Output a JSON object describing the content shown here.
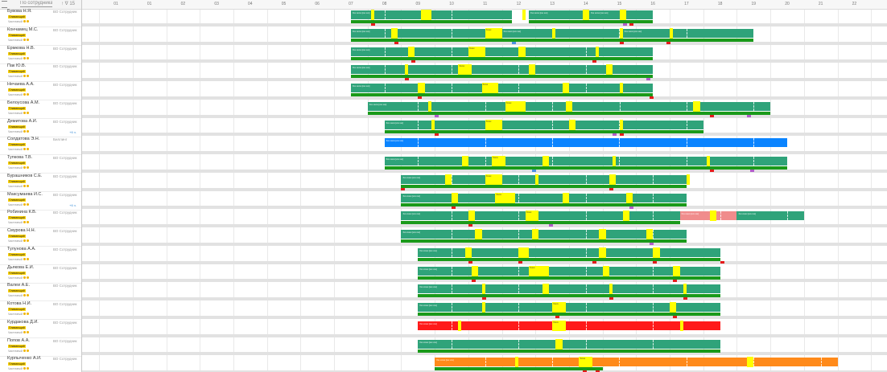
{
  "sidebar": {
    "header": {
      "filter_label": "По сотрудникам",
      "total_label": "↑ ∇ 15"
    },
    "employees": [
      {
        "name": "Бувова Н.Я.",
        "role": "ВО Сотрудник",
        "badge": "Плавающий",
        "schedule": "Частичный"
      },
      {
        "name": "Кончамец М.С.",
        "role": "ВО Сотрудник",
        "badge": "Плавающий",
        "schedule": "Частичный"
      },
      {
        "name": "Ермкова Н.В.",
        "role": "ВО Сотрудник",
        "badge": "Плавающий",
        "schedule": "Частичный"
      },
      {
        "name": "Пак Ю.В.",
        "role": "ВО Сотрудник",
        "badge": "Плавающий",
        "schedule": "Частичный"
      },
      {
        "name": "Нечаева А.А.",
        "role": "ВО Сотрудник",
        "badge": "Плавающий",
        "schedule": "Частичный"
      },
      {
        "name": "Белоусова А.М.",
        "role": "ВО Сотрудник",
        "badge": "Плавающий",
        "schedule": "Частичный"
      },
      {
        "name": "Демитова А.И.",
        "role": "ВО Сотрудник",
        "badge": "Плавающий",
        "schedule": "Частичный",
        "extra": "+6 ч."
      },
      {
        "name": "Солдатова Э.Н.",
        "role": "Биллинг",
        "badge": "Плавающий",
        "schedule": "Частичный"
      },
      {
        "name": "Тупкова Т.В.",
        "role": "ВО Сотрудник",
        "badge": "Плавающий",
        "schedule": "Частичный"
      },
      {
        "name": "Бурашников С.Е.",
        "role": "ВО Сотрудник",
        "badge": "Плавающий",
        "schedule": "Частичный"
      },
      {
        "name": "Максумаева И.С.",
        "role": "ВО Сотрудник",
        "badge": "Плавающий",
        "schedule": "Частичный",
        "extra": "+6 ч."
      },
      {
        "name": "Робинина К.В.",
        "role": "ВО Сотрудник",
        "badge": "Плавающий",
        "schedule": "Частичный"
      },
      {
        "name": "Смурова Н.Н.",
        "role": "ВО Сотрудник",
        "badge": "Плавающий",
        "schedule": "Частичный"
      },
      {
        "name": "Тулунова А.А.",
        "role": "ВО Сотрудник",
        "badge": "Плавающий",
        "schedule": "Частичный"
      },
      {
        "name": "Дьякова Е.И.",
        "role": "ВО Сотрудник",
        "badge": "Плавающий",
        "schedule": "Частичный"
      },
      {
        "name": "Валеи А.Е.",
        "role": "ВО Сотрудник",
        "badge": "Плавающий",
        "schedule": "Частичный"
      },
      {
        "name": "Котова Н.И.",
        "role": "ВО Сотрудник",
        "badge": "Плавающий",
        "schedule": "Частичный"
      },
      {
        "name": "Курдакова Д.И.",
        "role": "ВО Сотрудник",
        "badge": "Плавающий",
        "schedule": "Частичный"
      },
      {
        "name": "Попов А.А.",
        "role": "ВО Сотрудник",
        "badge": "Плавающий",
        "schedule": "Частичный"
      },
      {
        "name": "Курпыченко А.И.",
        "role": "ВО Сотрудник",
        "badge": "Плавающий",
        "schedule": "Частичный"
      }
    ]
  },
  "timeline": {
    "hours": [
      "01",
      "01",
      "02",
      "03",
      "04",
      "05",
      "06",
      "07",
      "08",
      "09",
      "10",
      "11",
      "12",
      "13",
      "14",
      "15",
      "16",
      "17",
      "18",
      "19",
      "20",
      "21",
      "22"
    ],
    "shift_text": "Ххх ххххх [ххх ххх]",
    "break_text": "Ххххх"
  },
  "colors": {
    "work": "#2fa37a",
    "base": "#1a9a1a",
    "break": "#ffff00",
    "billing": "#0a84ff",
    "absence": "#ff1a1a",
    "overtime": "#ff8a1a",
    "extra": "#f08c8c",
    "marker_red": "#e51b1b",
    "marker_purple": "#b15cc9",
    "marker_blue": "#4a90e2"
  },
  "rows": [
    {
      "shifts": [
        [
          8.0,
          12.8,
          "work"
        ],
        [
          13.3,
          14.9,
          "work"
        ],
        [
          15.1,
          17.0,
          "work"
        ]
      ],
      "breaks": [
        [
          8.6,
          8.7
        ],
        [
          10.1,
          10.4
        ],
        [
          13.1,
          13.2
        ],
        [
          14.9,
          15.1
        ],
        [
          16.0,
          16.2
        ]
      ],
      "base": [
        [
          8.0,
          12.8,
          "base"
        ],
        [
          13.3,
          17.0,
          "base"
        ]
      ],
      "markers": [
        [
          8.6,
          "marker_red"
        ],
        [
          16.1,
          "marker_purple"
        ],
        [
          16.3,
          "marker_red"
        ]
      ]
    },
    {
      "shifts": [
        [
          8.0,
          12.4,
          "work"
        ],
        [
          12.5,
          16.1,
          "work"
        ],
        [
          16.1,
          20.0,
          "work"
        ]
      ],
      "breaks": [
        [
          9.2,
          9.4
        ],
        [
          12.0,
          12.5
        ],
        [
          14.0,
          14.1
        ],
        [
          16.0,
          16.1
        ],
        [
          17.5,
          17.6
        ]
      ],
      "base": [
        [
          8.0,
          20.0,
          "base"
        ]
      ],
      "markers": [
        [
          9.3,
          "marker_red"
        ],
        [
          12.8,
          "marker_blue"
        ],
        [
          16.0,
          "marker_red"
        ],
        [
          17.4,
          "marker_red"
        ]
      ]
    },
    {
      "shifts": [
        [
          8.0,
          17.0,
          "work"
        ]
      ],
      "breaks": [
        [
          9.7,
          9.9
        ],
        [
          11.5,
          12.0
        ],
        [
          13.0,
          13.2
        ],
        [
          15.3,
          15.4
        ]
      ],
      "base": [
        [
          8.0,
          17.0,
          "base"
        ]
      ],
      "markers": [
        [
          9.8,
          "marker_red"
        ],
        [
          15.2,
          "marker_red"
        ]
      ]
    },
    {
      "shifts": [
        [
          8.0,
          17.0,
          "work"
        ]
      ],
      "breaks": [
        [
          9.6,
          9.7
        ],
        [
          11.2,
          11.6
        ],
        [
          13.3,
          13.5
        ],
        [
          15.6,
          15.8
        ]
      ],
      "base": [
        [
          8.0,
          17.0,
          "base"
        ]
      ],
      "markers": [
        [
          9.6,
          "marker_red"
        ],
        [
          16.8,
          "marker_purple"
        ]
      ]
    },
    {
      "shifts": [
        [
          8.0,
          17.0,
          "work"
        ]
      ],
      "breaks": [
        [
          10.0,
          10.2
        ],
        [
          11.9,
          12.4
        ],
        [
          14.3,
          14.5
        ],
        [
          16.0,
          16.1
        ]
      ],
      "base": [
        [
          8.0,
          17.0,
          "base"
        ]
      ],
      "markers": [
        [
          10.0,
          "marker_red"
        ],
        [
          16.9,
          "marker_red"
        ]
      ]
    },
    {
      "shifts": [
        [
          8.5,
          20.5,
          "work"
        ]
      ],
      "breaks": [
        [
          10.3,
          10.4
        ],
        [
          12.6,
          13.2
        ],
        [
          14.4,
          14.6
        ],
        [
          18.2,
          18.4
        ]
      ],
      "base": [
        [
          8.5,
          20.5,
          "base"
        ]
      ],
      "markers": [
        [
          10.5,
          "marker_purple"
        ],
        [
          18.7,
          "marker_red"
        ],
        [
          19.8,
          "marker_purple"
        ]
      ]
    },
    {
      "shifts": [
        [
          9.0,
          18.5,
          "work"
        ]
      ],
      "breaks": [
        [
          10.4,
          10.5
        ],
        [
          12.0,
          12.5
        ],
        [
          14.5,
          14.7
        ],
        [
          16.0,
          16.1
        ]
      ],
      "base": [
        [
          9.0,
          18.5,
          "base"
        ]
      ],
      "markers": [
        [
          10.5,
          "marker_red"
        ],
        [
          15.8,
          "marker_purple"
        ],
        [
          16.0,
          "marker_red"
        ]
      ]
    },
    {
      "shifts": [
        [
          9.0,
          21.0,
          "billing"
        ]
      ],
      "breaks": [],
      "base": [],
      "markers": []
    },
    {
      "shifts": [
        [
          9.0,
          21.0,
          "work"
        ]
      ],
      "breaks": [
        [
          11.3,
          11.5
        ],
        [
          12.2,
          12.6
        ],
        [
          13.7,
          13.9
        ],
        [
          15.8,
          15.9
        ],
        [
          18.6,
          18.7
        ]
      ],
      "base": [
        [
          9.0,
          21.0,
          "base"
        ]
      ],
      "markers": [
        [
          13.4,
          "marker_blue"
        ],
        [
          19.9,
          "marker_purple"
        ],
        [
          18.7,
          "marker_red"
        ]
      ]
    },
    {
      "shifts": [
        [
          9.5,
          18.0,
          "work"
        ]
      ],
      "breaks": [
        [
          10.8,
          11.0
        ],
        [
          12.0,
          12.5
        ],
        [
          13.5,
          13.6
        ],
        [
          15.7,
          15.9
        ],
        [
          18.0,
          18.1
        ]
      ],
      "base": [
        [
          9.5,
          18.0,
          "base"
        ]
      ],
      "markers": [
        [
          9.5,
          "marker_red"
        ],
        [
          15.7,
          "marker_red"
        ]
      ]
    },
    {
      "shifts": [
        [
          9.5,
          18.0,
          "work"
        ]
      ],
      "breaks": [
        [
          11.0,
          11.2
        ],
        [
          12.3,
          12.9
        ],
        [
          14.3,
          14.5
        ],
        [
          16.2,
          16.4
        ]
      ],
      "base": [
        [
          9.5,
          18.0,
          "base"
        ]
      ],
      "markers": [
        [
          11.0,
          "marker_red"
        ],
        [
          16.3,
          "marker_purple"
        ]
      ]
    },
    {
      "shifts": [
        [
          9.5,
          17.8,
          "work"
        ],
        [
          17.8,
          19.5,
          "extra"
        ],
        [
          19.5,
          21.5,
          "work"
        ]
      ],
      "breaks": [
        [
          11.5,
          11.7
        ],
        [
          13.2,
          13.6
        ],
        [
          16.1,
          16.3
        ],
        [
          18.7,
          18.9
        ]
      ],
      "base": [
        [
          9.5,
          17.8,
          "base"
        ]
      ],
      "markers": [
        [
          13.9,
          "marker_purple"
        ],
        [
          11.5,
          "marker_red"
        ]
      ]
    },
    {
      "shifts": [
        [
          9.5,
          18.0,
          "work"
        ]
      ],
      "breaks": [
        [
          11.7,
          11.9
        ],
        [
          13.4,
          13.6
        ],
        [
          15.4,
          15.6
        ],
        [
          16.8,
          17.0
        ]
      ],
      "base": [
        [
          9.5,
          18.0,
          "base"
        ]
      ],
      "markers": [
        [
          16.9,
          "marker_purple"
        ]
      ]
    },
    {
      "shifts": [
        [
          10.0,
          19.0,
          "work"
        ]
      ],
      "breaks": [
        [
          11.4,
          11.6
        ],
        [
          13.0,
          13.3
        ],
        [
          15.4,
          15.6
        ],
        [
          17.0,
          17.2
        ]
      ],
      "base": [
        [
          10.0,
          19.0,
          "base"
        ]
      ],
      "markers": [
        [
          11.5,
          "marker_red"
        ],
        [
          13.0,
          "marker_red"
        ],
        [
          15.2,
          "marker_red"
        ],
        [
          17.0,
          "marker_red"
        ],
        [
          19.0,
          "marker_red"
        ]
      ]
    },
    {
      "shifts": [
        [
          10.0,
          19.0,
          "work"
        ]
      ],
      "breaks": [
        [
          11.6,
          11.8
        ],
        [
          13.3,
          13.9
        ],
        [
          15.5,
          15.7
        ],
        [
          17.6,
          17.8
        ]
      ],
      "base": [
        [
          10.0,
          19.0,
          "base"
        ]
      ],
      "markers": [
        [
          11.6,
          "marker_red"
        ],
        [
          17.6,
          "marker_red"
        ]
      ]
    },
    {
      "shifts": [
        [
          10.0,
          19.0,
          "work"
        ]
      ],
      "breaks": [
        [
          11.9,
          12.0
        ],
        [
          13.7,
          13.9
        ],
        [
          15.7,
          15.8
        ],
        [
          17.9,
          18.0
        ]
      ],
      "base": [
        [
          10.0,
          19.0,
          "base"
        ]
      ],
      "markers": [
        [
          11.9,
          "marker_red"
        ],
        [
          15.7,
          "marker_red"
        ],
        [
          17.9,
          "marker_red"
        ]
      ]
    },
    {
      "shifts": [
        [
          10.0,
          19.0,
          "work"
        ]
      ],
      "breaks": [
        [
          11.9,
          12.0
        ],
        [
          14.0,
          14.4
        ],
        [
          17.5,
          17.7
        ]
      ],
      "base": [
        [
          10.0,
          19.0,
          "base"
        ]
      ],
      "markers": [
        [
          14.1,
          "marker_red"
        ],
        [
          17.6,
          "marker_red"
        ]
      ]
    },
    {
      "shifts": [
        [
          10.0,
          19.0,
          "absence"
        ]
      ],
      "breaks": [
        [
          11.2,
          11.3
        ],
        [
          14.0,
          14.4
        ],
        [
          17.8,
          17.9
        ]
      ],
      "base": [],
      "markers": []
    },
    {
      "shifts": [
        [
          10.0,
          19.0,
          "work"
        ]
      ],
      "breaks": [
        [
          14.1,
          14.3
        ]
      ],
      "base": [
        [
          10.0,
          19.0,
          "base"
        ]
      ],
      "markers": []
    },
    {
      "shifts": [
        [
          10.5,
          22.5,
          "overtime"
        ]
      ],
      "breaks": [
        [
          12.9,
          13.0
        ],
        [
          14.8,
          15.2
        ],
        [
          19.8,
          20.0
        ]
      ],
      "base": [
        [
          10.5,
          15.5,
          "base"
        ]
      ],
      "markers": [
        [
          14.9,
          "marker_red"
        ],
        [
          15.3,
          "marker_red"
        ]
      ]
    }
  ]
}
